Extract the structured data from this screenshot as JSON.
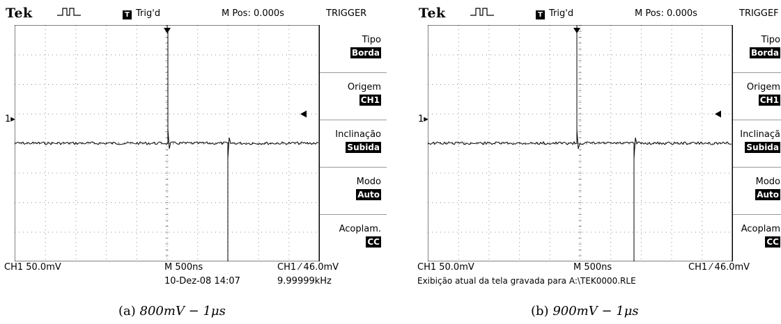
{
  "panels": {
    "a": {
      "brand": "Tek",
      "trig_box": "T",
      "trig_status": "Trig'd",
      "mpos": "M Pos: 0.000s",
      "menu_title": "TRIGGER",
      "menu": [
        {
          "label": "Tipo",
          "value": "Borda"
        },
        {
          "label": "Origem",
          "value": "CH1"
        },
        {
          "label": "Inclinação",
          "value": "Subida"
        },
        {
          "label": "Modo",
          "value": "Auto"
        },
        {
          "label": "Acoplam.",
          "value": "CC"
        }
      ],
      "ground_marker": "1",
      "ch1_scale": "CH1  50.0mV",
      "timebase": "M 500ns",
      "trigger_readout": "CH1 ⁄ 46.0mV",
      "date": "10-Dez-08 14:07",
      "frequency": "9.99999kHz",
      "caption_prefix": "(a)",
      "caption_formula": "800mV − 1μs"
    },
    "b": {
      "brand": "Tek",
      "trig_box": "T",
      "trig_status": "Trig'd",
      "mpos": "M Pos: 0.000s",
      "menu_title": "TRIGGEF",
      "menu": [
        {
          "label": "Tipo",
          "value": "Borda"
        },
        {
          "label": "Origem",
          "value": "CH1"
        },
        {
          "label": "Inclinaçã",
          "value": "Subida"
        },
        {
          "label": "Modo",
          "value": "Auto"
        },
        {
          "label": "Acoplam",
          "value": "CC"
        }
      ],
      "ground_marker": "1",
      "ch1_scale": "CH1  50.0mV",
      "timebase": "M 500ns",
      "trigger_readout": "CH1 ⁄ 46.0mV",
      "save_message": "Exibição atual da tela gravada para A:\\TEK0000.RLE",
      "caption_prefix": "(b)",
      "caption_formula": "900mV − 1μs"
    }
  },
  "colors": {
    "trace": "#000000",
    "grid": "#888888",
    "menu_highlight": "#000000"
  }
}
